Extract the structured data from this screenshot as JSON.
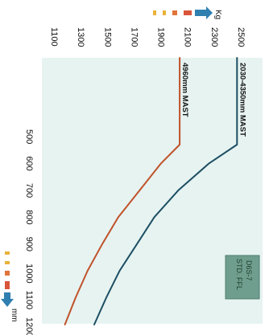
{
  "chart_data": {
    "type": "line",
    "title": "",
    "xlabel": "mm",
    "ylabel": "Kg",
    "x_ticks": [
      500,
      600,
      700,
      800,
      900,
      1000,
      1100,
      1200
    ],
    "y_ticks": [
      1100,
      1300,
      1500,
      1700,
      1900,
      2100,
      2300,
      2500
    ],
    "xlim": [
      400,
      1200
    ],
    "ylim": [
      1100,
      2500
    ],
    "grid": false,
    "series": [
      {
        "name": "2030-4350mm MAST",
        "color": "#1d4e63",
        "x": [
          400,
          530,
          600,
          700,
          800,
          900,
          1000,
          1100,
          1200
        ],
        "y": [
          2490,
          2490,
          2280,
          2050,
          1870,
          1740,
          1610,
          1510,
          1420
        ]
      },
      {
        "name": "4960mm MAST",
        "color": "#c0522a",
        "x": [
          400,
          530,
          600,
          700,
          800,
          900,
          1000,
          1100,
          1200
        ],
        "y": [
          2060,
          2060,
          1920,
          1760,
          1600,
          1480,
          1370,
          1280,
          1200
        ]
      }
    ],
    "badge": {
      "line1": "D6S-7",
      "line2": "STD. FFL"
    }
  },
  "colors": {
    "plot_background": "#e6f3f1",
    "badge_background": "#6f9e8e",
    "arrow_x": "#2f7fb0",
    "arrow_y": "#2f7fb0"
  }
}
